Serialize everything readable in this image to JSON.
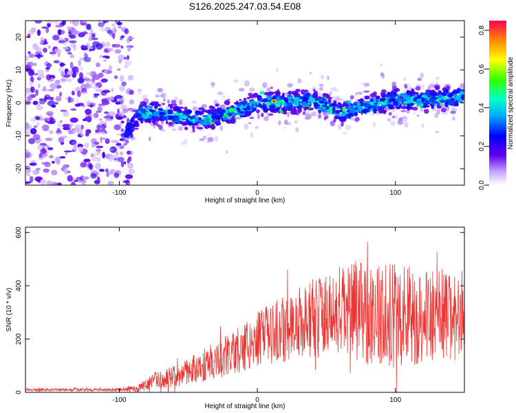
{
  "title": "S126.2025.247.03.54.E08",
  "chart_data": [
    {
      "type": "heatmap",
      "xlabel": "Height of straight line (km)",
      "ylabel": "Frequency (Hz)",
      "xlim": [
        -168,
        150
      ],
      "ylim": [
        -25,
        25
      ],
      "xticks": [
        -100,
        0,
        100
      ],
      "yticks": [
        -20,
        -10,
        0,
        10,
        20
      ],
      "colorbar": {
        "label": "Normalized spectral amplitude",
        "range": [
          0.0,
          0.85
        ],
        "ticks": [
          0.0,
          0.2,
          0.4,
          0.6,
          0.8
        ],
        "tick_labels": [
          "0.0",
          "0.2",
          "0.4",
          "0.6",
          "0.8"
        ]
      },
      "ridge": {
        "description": "dominant frequency band",
        "x": [
          -95,
          -85,
          -75,
          -60,
          -40,
          -20,
          0,
          20,
          40,
          60,
          80,
          100,
          120,
          148
        ],
        "y": [
          -10,
          -3,
          -3,
          -4,
          -5,
          -3,
          0,
          0,
          1,
          -3,
          -1,
          1,
          1,
          2
        ]
      },
      "noise_region_x": [
        -168,
        -95
      ],
      "peak": {
        "x": 12,
        "y": 0.5,
        "value": 0.85
      }
    },
    {
      "type": "line",
      "xlabel": "Height of straight line (km)",
      "ylabel": "SNR (10 * v/v)",
      "xlim": [
        -168,
        150
      ],
      "ylim": [
        0,
        620
      ],
      "xticks": [
        -100,
        0,
        100
      ],
      "yticks": [
        0,
        200,
        400,
        600
      ],
      "color": "#ee3333",
      "envelope": {
        "x": [
          -168,
          -100,
          -85,
          -75,
          -60,
          -40,
          -20,
          0,
          20,
          40,
          60,
          80,
          100,
          120,
          150
        ],
        "mean": [
          10,
          10,
          15,
          45,
          60,
          100,
          140,
          200,
          240,
          280,
          300,
          300,
          290,
          290,
          290
        ],
        "amp": [
          5,
          5,
          15,
          25,
          35,
          55,
          70,
          90,
          110,
          130,
          150,
          170,
          170,
          160,
          150
        ]
      }
    }
  ]
}
